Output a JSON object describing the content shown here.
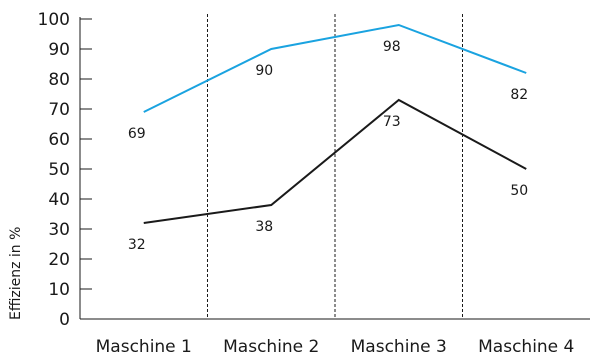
{
  "chart_data": {
    "type": "line",
    "ylabel": "Effizienz in %",
    "ylim": [
      0,
      100
    ],
    "yticks": [
      "0",
      "10",
      "20",
      "30",
      "40",
      "50",
      "60",
      "70",
      "80",
      "90",
      "100"
    ],
    "categories": [
      "Maschine 1",
      "Maschine 2",
      "Maschine 3",
      "Maschine 4"
    ],
    "series": [
      {
        "values": [
          69,
          90,
          98,
          82
        ],
        "color": "#1aa3e0",
        "labels": [
          "69",
          "90",
          "98",
          "82"
        ]
      },
      {
        "values": [
          32,
          38,
          73,
          50
        ],
        "color": "#1a1a1a",
        "labels": [
          "32",
          "38",
          "73",
          "50"
        ]
      }
    ],
    "grid": "vertical dashed separators between categories",
    "legend": "none"
  }
}
